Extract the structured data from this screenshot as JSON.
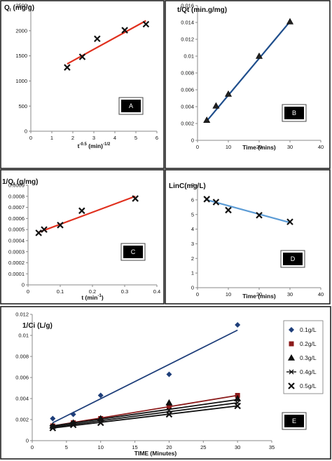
{
  "chart_data": [
    {
      "panel": "A",
      "type": "scatter",
      "ylabel": "Q",
      "ylabel_sub": "t",
      "ylabel_unit": " (mg/g)",
      "xlabel": "t",
      "xlabel_sup": "-0.5",
      "xlabel_unit": " (min)",
      "xlabel_unit_sup": "-1/2",
      "xlim": [
        0,
        6
      ],
      "ylim": [
        0,
        2500
      ],
      "xticks": [
        "0",
        "1",
        "2",
        "3",
        "4",
        "5",
        "6"
      ],
      "yticks": [
        "0",
        "500",
        "1000",
        "1500",
        "2000",
        "2500"
      ],
      "marker": "x",
      "marker_color": "#111111",
      "line_color": "#e0301e",
      "x": [
        1.73,
        2.45,
        3.16,
        4.47,
        5.48
      ],
      "y": [
        1270,
        1480,
        1840,
        2010,
        2130
      ],
      "fit": [
        [
          1.73,
          1340
        ],
        [
          5.48,
          2200
        ]
      ]
    },
    {
      "panel": "B",
      "type": "scatter",
      "ylabel": "t/Qt",
      "ylabel_unit": "  (min.g/mg)",
      "xlabel": "Time (mins)",
      "xlim": [
        0,
        40
      ],
      "ylim": [
        0,
        0.016
      ],
      "xticks": [
        "0",
        "10",
        "20",
        "30",
        "40"
      ],
      "yticks": [
        "0",
        "0.002",
        "0.004",
        "0.006",
        "0.008",
        "0.01",
        "0.012",
        "0.014",
        "0.016"
      ],
      "marker": "triangle",
      "marker_color": "#222222",
      "line_color": "#1f4e8c",
      "x": [
        3,
        6,
        10,
        20,
        30
      ],
      "y": [
        0.0024,
        0.0041,
        0.0055,
        0.01,
        0.0141
      ],
      "fit": [
        [
          3,
          0.0023
        ],
        [
          30,
          0.0141
        ]
      ]
    },
    {
      "panel": "C",
      "type": "scatter",
      "ylabel": "1/Q",
      "ylabel_sub": "t",
      "ylabel_unit": " (g/mg)",
      "xlabel": "t (min",
      "xlabel_sup": "-1",
      "xlabel_unit": ")",
      "xlim": [
        0,
        0.4
      ],
      "ylim": [
        0,
        0.0009
      ],
      "xticks": [
        "0",
        "0.1",
        "0.2",
        "0.3",
        "0.4"
      ],
      "yticks": [
        "0",
        "0.0001",
        "0.0002",
        "0.0003",
        "0.0004",
        "0.0005",
        "0.0006",
        "0.0007",
        "0.0008",
        "0.0009"
      ],
      "marker": "x",
      "marker_color": "#111111",
      "line_color": "#e0301e",
      "x": [
        0.033,
        0.05,
        0.1,
        0.167,
        0.333
      ],
      "y": [
        0.00047,
        0.0005,
        0.00054,
        0.00067,
        0.00078
      ],
      "fit": [
        [
          0.033,
          0.000475
        ],
        [
          0.333,
          0.0008
        ]
      ]
    },
    {
      "panel": "D",
      "type": "scatter",
      "ylabel": "LinC(mg/L)",
      "xlabel": "Time (mins)",
      "xlim": [
        0,
        40
      ],
      "ylim": [
        0,
        7
      ],
      "xticks": [
        "0",
        "10",
        "20",
        "30",
        "40"
      ],
      "yticks": [
        "0",
        "1",
        "2",
        "3",
        "4",
        "5",
        "6",
        "7"
      ],
      "marker": "x",
      "marker_color": "#111111",
      "line_color": "#5b9bd5",
      "x": [
        3,
        6,
        10,
        20,
        30
      ],
      "y": [
        6.05,
        5.85,
        5.3,
        4.95,
        4.5
      ],
      "fit": [
        [
          3,
          6.0
        ],
        [
          30,
          4.45
        ]
      ]
    },
    {
      "panel": "E",
      "type": "scatter",
      "ylabel": "1/Ci (L/g)",
      "xlabel": "TIME  (Minutes)",
      "xlim": [
        0,
        35
      ],
      "ylim": [
        0,
        0.012
      ],
      "xticks": [
        "0",
        "5",
        "10",
        "15",
        "20",
        "25",
        "30",
        "35"
      ],
      "yticks": [
        "0",
        "0.002",
        "0.004",
        "0.006",
        "0.008",
        "0.01",
        "0.012"
      ],
      "legend": "right",
      "series": [
        {
          "name": "0.1g/L",
          "marker": "diamond",
          "color": "#1f3f7a",
          "x": [
            3,
            6,
            10,
            20,
            30
          ],
          "y": [
            0.0021,
            0.0025,
            0.0043,
            0.0063,
            0.011
          ],
          "fit": [
            [
              3,
              0.0017
            ],
            [
              30,
              0.0105
            ]
          ]
        },
        {
          "name": "0.2g/L",
          "marker": "square",
          "color": "#8b1a1a",
          "x": [
            3,
            6,
            10,
            20,
            30
          ],
          "y": [
            0.0014,
            0.0017,
            0.0021,
            0.0032,
            0.0043
          ],
          "fit": [
            [
              3,
              0.0014
            ],
            [
              30,
              0.0043
            ]
          ]
        },
        {
          "name": "0.3g/L",
          "marker": "triangle",
          "color": "#111111",
          "x": [
            3,
            6,
            10,
            20,
            30
          ],
          "y": [
            0.0014,
            0.0017,
            0.0021,
            0.0036,
            0.004
          ],
          "fit": [
            [
              3,
              0.0014
            ],
            [
              30,
              0.0039
            ]
          ]
        },
        {
          "name": "0.4g/L",
          "marker": "line-x",
          "color": "#111111",
          "x": [
            3,
            6,
            10,
            20,
            30
          ],
          "y": [
            0.0013,
            0.0016,
            0.0019,
            0.0029,
            0.0036
          ],
          "fit": [
            [
              3,
              0.0013
            ],
            [
              30,
              0.0036
            ]
          ]
        },
        {
          "name": "0.5g/L",
          "marker": "x",
          "color": "#111111",
          "x": [
            3,
            6,
            10,
            20,
            30
          ],
          "y": [
            0.0012,
            0.0015,
            0.0017,
            0.0025,
            0.0033
          ],
          "fit": [
            [
              3,
              0.0012
            ],
            [
              30,
              0.0033
            ]
          ]
        }
      ]
    }
  ]
}
